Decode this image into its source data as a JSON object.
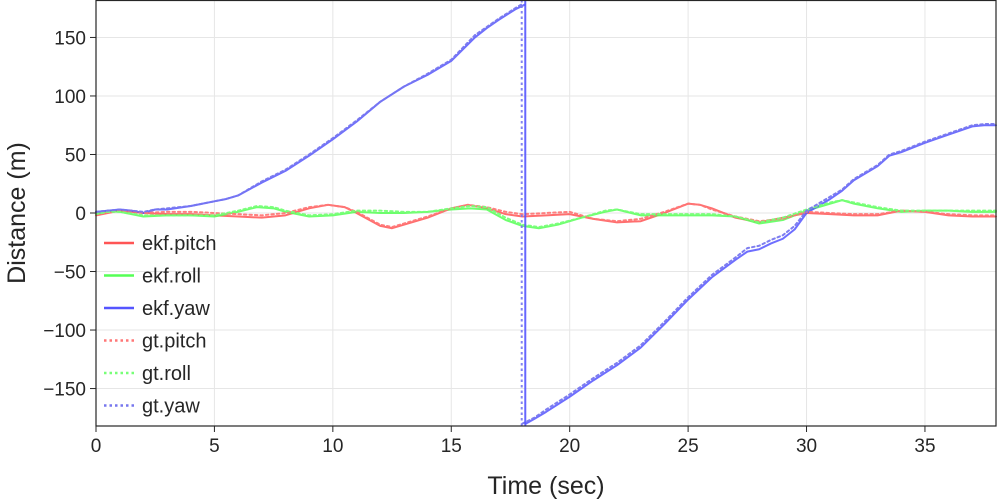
{
  "chart_data": {
    "type": "line",
    "xlabel": "Time (sec)",
    "ylabel": "Distance (m)",
    "xlim": [
      0,
      38
    ],
    "ylim": [
      -182,
      182
    ],
    "xticks": [
      0,
      5,
      10,
      15,
      20,
      25,
      30,
      35
    ],
    "yticks": [
      -150,
      -100,
      -50,
      0,
      50,
      100,
      150
    ],
    "xtick_labels": [
      "0",
      "5",
      "10",
      "15",
      "20",
      "25",
      "30",
      "35"
    ],
    "ytick_labels": [
      "−150",
      "−100",
      "−50",
      "0",
      "50",
      "100",
      "150"
    ],
    "grid": true,
    "legend_position": "lower-left",
    "series": [
      {
        "name": "ekf.pitch",
        "color": "#ff5555",
        "style": "solid",
        "points": [
          [
            0,
            -2
          ],
          [
            1,
            2
          ],
          [
            2,
            0
          ],
          [
            3,
            -1
          ],
          [
            4,
            -1
          ],
          [
            5,
            -2
          ],
          [
            6,
            -3
          ],
          [
            7,
            -4
          ],
          [
            8,
            -2
          ],
          [
            9,
            4
          ],
          [
            9.8,
            7
          ],
          [
            10.5,
            5
          ],
          [
            11,
            0
          ],
          [
            12,
            -11
          ],
          [
            12.5,
            -13
          ],
          [
            13,
            -10
          ],
          [
            14,
            -4
          ],
          [
            15,
            4
          ],
          [
            15.7,
            7
          ],
          [
            16.5,
            4
          ],
          [
            17.3,
            -1
          ],
          [
            18,
            -3
          ],
          [
            19,
            -2
          ],
          [
            20,
            -1
          ],
          [
            21,
            -5
          ],
          [
            22,
            -8
          ],
          [
            23,
            -7
          ],
          [
            24,
            0
          ],
          [
            25,
            8
          ],
          [
            25.5,
            7
          ],
          [
            26,
            4
          ],
          [
            27,
            -4
          ],
          [
            28,
            -8
          ],
          [
            29,
            -4
          ],
          [
            30,
            0
          ],
          [
            31,
            -1
          ],
          [
            32,
            -2
          ],
          [
            33,
            -2
          ],
          [
            34,
            2
          ],
          [
            35,
            1
          ],
          [
            36,
            -2
          ],
          [
            37,
            -3
          ],
          [
            38,
            -3
          ]
        ]
      },
      {
        "name": "ekf.roll",
        "color": "#55ff55",
        "style": "solid",
        "points": [
          [
            0,
            -1
          ],
          [
            0.5,
            2
          ],
          [
            1,
            1
          ],
          [
            2,
            -3
          ],
          [
            3,
            -2
          ],
          [
            4,
            -2
          ],
          [
            5,
            -3
          ],
          [
            6,
            1
          ],
          [
            6.8,
            5
          ],
          [
            7.5,
            4
          ],
          [
            8,
            1
          ],
          [
            9,
            -3
          ],
          [
            10,
            -2
          ],
          [
            11,
            1
          ],
          [
            12,
            0
          ],
          [
            13,
            0
          ],
          [
            14,
            1
          ],
          [
            15,
            3
          ],
          [
            15.8,
            4
          ],
          [
            16.5,
            3
          ],
          [
            17.3,
            -6
          ],
          [
            18,
            -11
          ],
          [
            18.7,
            -13
          ],
          [
            19.5,
            -10
          ],
          [
            20.5,
            -4
          ],
          [
            21.5,
            1
          ],
          [
            22,
            3
          ],
          [
            23,
            -2
          ],
          [
            24,
            -2
          ],
          [
            25,
            -2
          ],
          [
            26,
            -2
          ],
          [
            27,
            -3
          ],
          [
            28,
            -9
          ],
          [
            29,
            -6
          ],
          [
            30,
            2
          ],
          [
            31,
            8
          ],
          [
            31.5,
            11
          ],
          [
            32,
            8
          ],
          [
            33,
            4
          ],
          [
            34,
            1
          ],
          [
            35,
            2
          ],
          [
            36,
            2
          ],
          [
            37,
            1
          ],
          [
            38,
            1
          ]
        ]
      },
      {
        "name": "ekf.yaw",
        "color": "#5555ff",
        "style": "solid",
        "points": [
          [
            0,
            1
          ],
          [
            1,
            3
          ],
          [
            1.5,
            2
          ],
          [
            2,
            0
          ],
          [
            2.5,
            3
          ],
          [
            3,
            3
          ],
          [
            4,
            6
          ],
          [
            5,
            10
          ],
          [
            5.5,
            12
          ],
          [
            6,
            15
          ],
          [
            7,
            26
          ],
          [
            8,
            36
          ],
          [
            9,
            49
          ],
          [
            10,
            63
          ],
          [
            11,
            78
          ],
          [
            12,
            95
          ],
          [
            13,
            108
          ],
          [
            14,
            118
          ],
          [
            15,
            130
          ],
          [
            16,
            150
          ],
          [
            16.5,
            158
          ],
          [
            17,
            165
          ],
          [
            17.7,
            174
          ],
          [
            18.1,
            178
          ],
          [
            18.15,
            -180
          ],
          [
            18.5,
            -176
          ],
          [
            19,
            -170
          ],
          [
            20,
            -157
          ],
          [
            21,
            -143
          ],
          [
            22,
            -130
          ],
          [
            23,
            -115
          ],
          [
            24,
            -95
          ],
          [
            25,
            -74
          ],
          [
            26,
            -55
          ],
          [
            27,
            -40
          ],
          [
            27.5,
            -33
          ],
          [
            28,
            -31
          ],
          [
            28.5,
            -26
          ],
          [
            29,
            -22
          ],
          [
            29.5,
            -14
          ],
          [
            30,
            0
          ],
          [
            30.5,
            6
          ],
          [
            31,
            12
          ],
          [
            31.5,
            19
          ],
          [
            32,
            28
          ],
          [
            33,
            40
          ],
          [
            33.5,
            49
          ],
          [
            34,
            52
          ],
          [
            35,
            60
          ],
          [
            36,
            67
          ],
          [
            37,
            74
          ],
          [
            37.5,
            75
          ],
          [
            38,
            75
          ]
        ]
      },
      {
        "name": "gt.pitch",
        "color": "#ff7777",
        "style": "dotted",
        "points": [
          [
            0,
            -1
          ],
          [
            1,
            2
          ],
          [
            1.5,
            2
          ],
          [
            2,
            0
          ],
          [
            3,
            1
          ],
          [
            4,
            1
          ],
          [
            5,
            0
          ],
          [
            6,
            -1
          ],
          [
            7,
            -2
          ],
          [
            8,
            0
          ],
          [
            9,
            5
          ],
          [
            9.8,
            7
          ],
          [
            10.5,
            5
          ],
          [
            11,
            1
          ],
          [
            12,
            -10
          ],
          [
            12.5,
            -12
          ],
          [
            13,
            -9
          ],
          [
            14,
            -3
          ],
          [
            15,
            4
          ],
          [
            15.7,
            7
          ],
          [
            16.5,
            5
          ],
          [
            17.3,
            1
          ],
          [
            18,
            -1
          ],
          [
            19,
            0
          ],
          [
            20,
            1
          ],
          [
            21,
            -5
          ],
          [
            22,
            -7
          ],
          [
            23,
            -5
          ],
          [
            24,
            1
          ],
          [
            25,
            8
          ],
          [
            25.5,
            7
          ],
          [
            26,
            3
          ],
          [
            27,
            -3
          ],
          [
            28,
            -7
          ],
          [
            29,
            -5
          ],
          [
            30,
            1
          ],
          [
            31,
            0
          ],
          [
            32,
            -1
          ],
          [
            33,
            -1
          ],
          [
            34,
            2
          ],
          [
            35,
            1
          ],
          [
            36,
            -1
          ],
          [
            37,
            -2
          ],
          [
            38,
            -2
          ]
        ]
      },
      {
        "name": "gt.roll",
        "color": "#77ff77",
        "style": "dotted",
        "points": [
          [
            0,
            -1
          ],
          [
            0.5,
            1
          ],
          [
            1,
            1
          ],
          [
            2,
            -2
          ],
          [
            3,
            -2
          ],
          [
            4,
            -2
          ],
          [
            5,
            -2
          ],
          [
            6,
            2
          ],
          [
            6.8,
            6
          ],
          [
            7.5,
            5
          ],
          [
            8,
            2
          ],
          [
            9,
            -2
          ],
          [
            10,
            -1
          ],
          [
            11,
            2
          ],
          [
            12,
            2
          ],
          [
            13,
            1
          ],
          [
            14,
            1
          ],
          [
            15,
            4
          ],
          [
            15.8,
            6
          ],
          [
            16.5,
            5
          ],
          [
            17.3,
            -4
          ],
          [
            18,
            -10
          ],
          [
            18.7,
            -12
          ],
          [
            19.5,
            -9
          ],
          [
            20.5,
            -4
          ],
          [
            21.5,
            2
          ],
          [
            22,
            3
          ],
          [
            23,
            -1
          ],
          [
            24,
            -1
          ],
          [
            25,
            -1
          ],
          [
            26,
            -1
          ],
          [
            27,
            -3
          ],
          [
            28,
            -8
          ],
          [
            29,
            -4
          ],
          [
            30,
            3
          ],
          [
            31,
            9
          ],
          [
            31.5,
            11
          ],
          [
            32,
            9
          ],
          [
            33,
            5
          ],
          [
            34,
            2
          ],
          [
            35,
            2
          ],
          [
            36,
            2
          ],
          [
            37,
            2
          ],
          [
            38,
            2
          ]
        ]
      },
      {
        "name": "gt.yaw",
        "color": "#7777ee",
        "style": "dotted",
        "points": [
          [
            0,
            1
          ],
          [
            1,
            3
          ],
          [
            1.5,
            2
          ],
          [
            2,
            1
          ],
          [
            2.5,
            3
          ],
          [
            3,
            4
          ],
          [
            4,
            6
          ],
          [
            5,
            10
          ],
          [
            5.5,
            12
          ],
          [
            6,
            15
          ],
          [
            7,
            27
          ],
          [
            8,
            37
          ],
          [
            9,
            50
          ],
          [
            10,
            64
          ],
          [
            11,
            79
          ],
          [
            12,
            95
          ],
          [
            13,
            108
          ],
          [
            14,
            119
          ],
          [
            15,
            131
          ],
          [
            16,
            152
          ],
          [
            16.5,
            159
          ],
          [
            17,
            166
          ],
          [
            17.7,
            175
          ],
          [
            17.95,
            178
          ],
          [
            18.0,
            -180
          ],
          [
            18.5,
            -175
          ],
          [
            19,
            -168
          ],
          [
            20,
            -155
          ],
          [
            21,
            -141
          ],
          [
            22,
            -128
          ],
          [
            23,
            -113
          ],
          [
            24,
            -93
          ],
          [
            25,
            -72
          ],
          [
            26,
            -53
          ],
          [
            27,
            -38
          ],
          [
            27.5,
            -30
          ],
          [
            28,
            -28
          ],
          [
            28.5,
            -23
          ],
          [
            29,
            -19
          ],
          [
            29.5,
            -11
          ],
          [
            30,
            2
          ],
          [
            30.5,
            8
          ],
          [
            31,
            14
          ],
          [
            31.5,
            20
          ],
          [
            32,
            29
          ],
          [
            33,
            41
          ],
          [
            33.5,
            50
          ],
          [
            34,
            53
          ],
          [
            35,
            61
          ],
          [
            36,
            68
          ],
          [
            37,
            75
          ],
          [
            37.5,
            76
          ],
          [
            38,
            76
          ]
        ]
      }
    ]
  }
}
